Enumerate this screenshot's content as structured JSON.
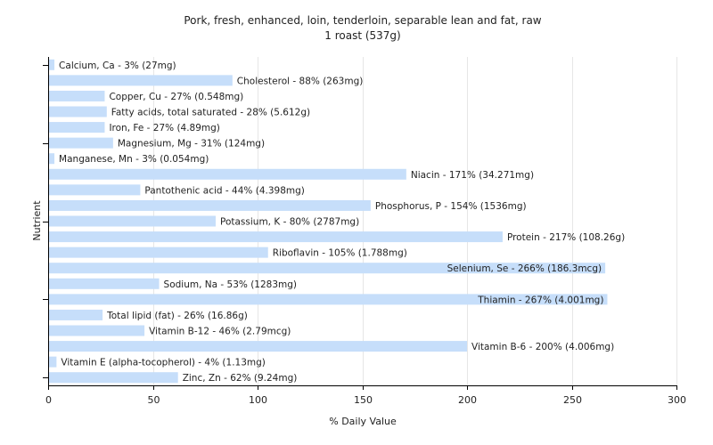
{
  "chart_data": {
    "type": "bar",
    "orientation": "horizontal",
    "title": "Pork, fresh, enhanced, loin, tenderloin, separable lean and fat, raw",
    "subtitle": "1 roast (537g)",
    "xlabel": "% Daily Value",
    "ylabel": "Nutrient",
    "xlim": [
      0,
      300
    ],
    "xticks": [
      "0",
      "50",
      "100",
      "150",
      "200",
      "250",
      "300"
    ],
    "grid": true,
    "bar_color": "#c6defa",
    "categories": [
      "Calcium, Ca",
      "Cholesterol",
      "Copper, Cu",
      "Fatty acids, total saturated",
      "Iron, Fe",
      "Magnesium, Mg",
      "Manganese, Mn",
      "Niacin",
      "Pantothenic acid",
      "Phosphorus, P",
      "Potassium, K",
      "Protein",
      "Riboflavin",
      "Selenium, Se",
      "Sodium, Na",
      "Thiamin",
      "Total lipid (fat)",
      "Vitamin B-12",
      "Vitamin B-6",
      "Vitamin E (alpha-tocopherol)",
      "Zinc, Zn"
    ],
    "values": [
      3,
      88,
      27,
      28,
      27,
      31,
      3,
      171,
      44,
      154,
      80,
      217,
      105,
      266,
      53,
      267,
      26,
      46,
      200,
      4,
      62
    ],
    "labels": [
      "Calcium, Ca - 3% (27mg)",
      "Cholesterol - 88% (263mg)",
      "Copper, Cu - 27% (0.548mg)",
      "Fatty acids, total saturated - 28% (5.612g)",
      "Iron, Fe - 27% (4.89mg)",
      "Magnesium, Mg - 31% (124mg)",
      "Manganese, Mn - 3% (0.054mg)",
      "Niacin - 171% (34.271mg)",
      "Pantothenic acid - 44% (4.398mg)",
      "Phosphorus, P - 154% (1536mg)",
      "Potassium, K - 80% (2787mg)",
      "Protein - 217% (108.26g)",
      "Riboflavin - 105% (1.788mg)",
      "Selenium, Se - 266% (186.3mcg)",
      "Sodium, Na - 53% (1283mg)",
      "Thiamin - 267% (4.001mg)",
      "Total lipid (fat) - 26% (16.86g)",
      "Vitamin B-12 - 46% (2.79mcg)",
      "Vitamin B-6 - 200% (4.006mg)",
      "Vitamin E (alpha-tocopherol) - 4% (1.13mg)",
      "Zinc, Zn - 62% (9.24mg)"
    ]
  }
}
